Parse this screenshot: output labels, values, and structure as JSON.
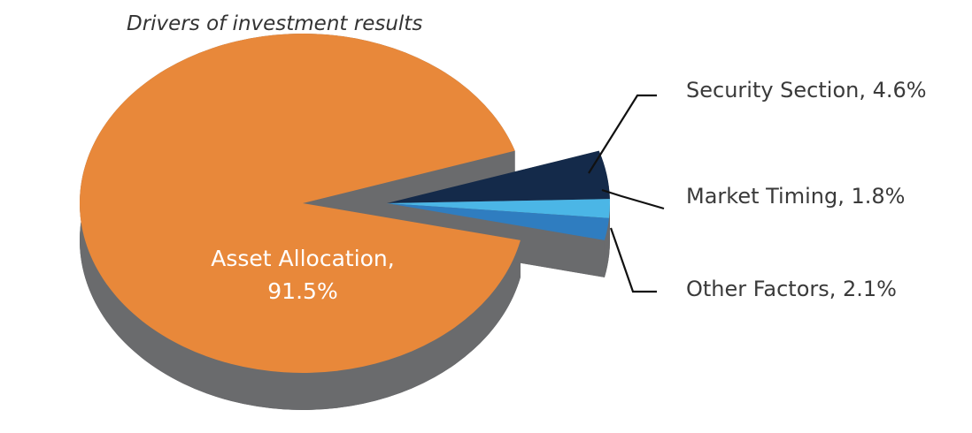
{
  "chart_data": {
    "type": "pie",
    "title": "Drivers of investment results",
    "values": [
      91.5,
      4.6,
      1.8,
      2.1
    ],
    "value_labels": [
      "Asset Allocation, 91.5%",
      "Security Section, 4.6%",
      "Market Timing, 1.8%",
      "Other Factors, 2.1%"
    ],
    "colors": [
      "#e8883a",
      "#142a4a",
      "#4bb6e6",
      "#2f7dc0"
    ],
    "side_color": "#6a6b6d"
  }
}
